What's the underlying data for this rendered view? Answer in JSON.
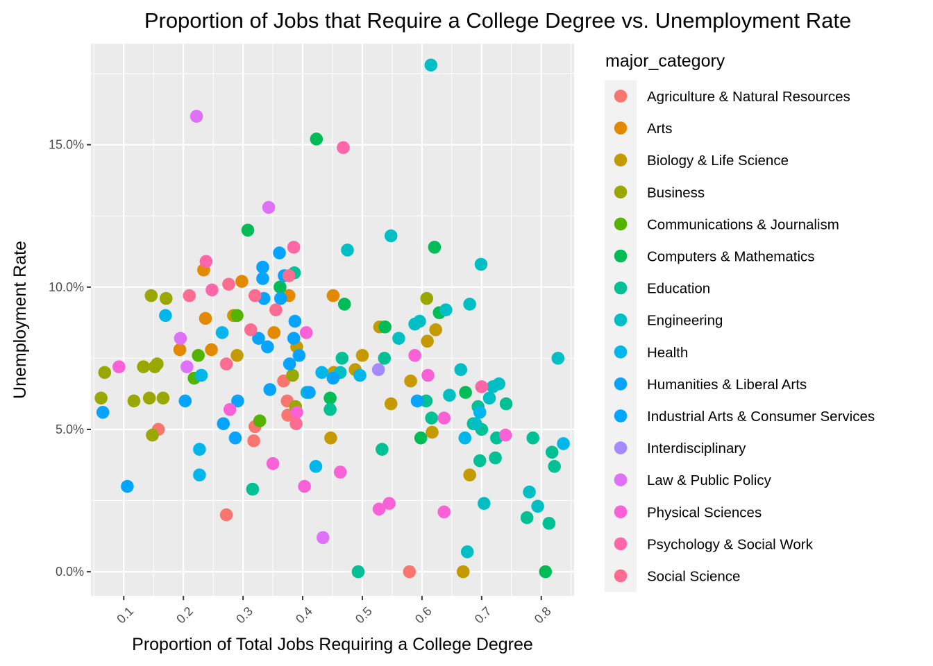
{
  "chart_data": {
    "type": "scatter",
    "title": "Proportion of Jobs that Require a College Degree vs. Unemployment Rate",
    "xlabel": "Proportion of Total Jobs Requiring a College Degree",
    "ylabel": "Unemployment Rate",
    "xlim": [
      0.045,
      0.855
    ],
    "ylim": [
      -0.0085,
      0.1855
    ],
    "x_ticks": [
      0.1,
      0.2,
      0.3,
      0.4,
      0.5,
      0.6,
      0.7,
      0.8
    ],
    "x_tick_labels": [
      "0.1",
      "0.2",
      "0.3",
      "0.4",
      "0.5",
      "0.6",
      "0.7",
      "0.8"
    ],
    "y_ticks": [
      0.0,
      0.05,
      0.1,
      0.15
    ],
    "y_tick_labels": [
      "0.0%",
      "5.0%",
      "10.0%",
      "15.0%"
    ],
    "grid": true,
    "panel_background": "#ebebeb",
    "legend": {
      "title": "major_category",
      "placement": "right",
      "background": "#f2f2f2"
    },
    "series": [
      {
        "name": "Agriculture & Natural Resources",
        "color": "#F8766D",
        "points": [
          [
            0.158,
            0.05
          ],
          [
            0.272,
            0.02
          ],
          [
            0.318,
            0.046
          ],
          [
            0.32,
            0.051
          ],
          [
            0.368,
            0.067
          ],
          [
            0.374,
            0.06
          ],
          [
            0.579,
            0.0
          ],
          [
            0.375,
            0.055
          ]
        ]
      },
      {
        "name": "Arts",
        "color": "#E38900",
        "points": [
          [
            0.194,
            0.078
          ],
          [
            0.234,
            0.106
          ],
          [
            0.237,
            0.089
          ],
          [
            0.247,
            0.078
          ],
          [
            0.284,
            0.09
          ],
          [
            0.298,
            0.102
          ],
          [
            0.352,
            0.084
          ],
          [
            0.377,
            0.097
          ],
          [
            0.451,
            0.097
          ]
        ]
      },
      {
        "name": "Biology & Life Science",
        "color": "#C49A00",
        "points": [
          [
            0.285,
            0.09
          ],
          [
            0.29,
            0.076
          ],
          [
            0.39,
            0.079
          ],
          [
            0.447,
            0.047
          ],
          [
            0.452,
            0.07
          ],
          [
            0.488,
            0.071
          ],
          [
            0.5,
            0.076
          ],
          [
            0.529,
            0.086
          ],
          [
            0.548,
            0.059
          ],
          [
            0.581,
            0.067
          ],
          [
            0.609,
            0.081
          ],
          [
            0.617,
            0.049
          ],
          [
            0.623,
            0.085
          ],
          [
            0.669,
            0.0
          ],
          [
            0.68,
            0.034
          ]
        ]
      },
      {
        "name": "Business",
        "color": "#99A800",
        "points": [
          [
            0.062,
            0.061
          ],
          [
            0.068,
            0.07
          ],
          [
            0.117,
            0.06
          ],
          [
            0.133,
            0.072
          ],
          [
            0.143,
            0.061
          ],
          [
            0.146,
            0.097
          ],
          [
            0.148,
            0.048
          ],
          [
            0.152,
            0.072
          ],
          [
            0.156,
            0.073
          ],
          [
            0.166,
            0.061
          ],
          [
            0.171,
            0.096
          ],
          [
            0.383,
            0.069
          ],
          [
            0.388,
            0.058
          ],
          [
            0.608,
            0.096
          ]
        ]
      },
      {
        "name": "Communications & Journalism",
        "color": "#53B400",
        "points": [
          [
            0.218,
            0.068
          ],
          [
            0.225,
            0.076
          ],
          [
            0.29,
            0.09
          ],
          [
            0.328,
            0.053
          ]
        ]
      },
      {
        "name": "Computers & Mathematics",
        "color": "#00BC56",
        "points": [
          [
            0.308,
            0.12
          ],
          [
            0.362,
            0.1
          ],
          [
            0.423,
            0.152
          ],
          [
            0.446,
            0.061
          ],
          [
            0.47,
            0.094
          ],
          [
            0.538,
            0.086
          ],
          [
            0.598,
            0.047
          ],
          [
            0.621,
            0.114
          ],
          [
            0.629,
            0.091
          ],
          [
            0.673,
            0.063
          ],
          [
            0.807,
            0.0
          ]
        ]
      },
      {
        "name": "Education",
        "color": "#00C094",
        "points": [
          [
            0.316,
            0.029
          ],
          [
            0.386,
            0.105
          ],
          [
            0.446,
            0.057
          ],
          [
            0.466,
            0.075
          ],
          [
            0.493,
            0.0
          ],
          [
            0.533,
            0.043
          ],
          [
            0.537,
            0.075
          ],
          [
            0.607,
            0.06
          ],
          [
            0.616,
            0.054
          ],
          [
            0.686,
            0.052
          ],
          [
            0.694,
            0.058
          ],
          [
            0.697,
            0.039
          ],
          [
            0.7,
            0.05
          ],
          [
            0.723,
            0.04
          ],
          [
            0.725,
            0.047
          ],
          [
            0.741,
            0.059
          ],
          [
            0.786,
            0.047
          ],
          [
            0.776,
            0.019
          ],
          [
            0.813,
            0.017
          ],
          [
            0.818,
            0.042
          ],
          [
            0.822,
            0.037
          ]
        ]
      },
      {
        "name": "Engineering",
        "color": "#00BFC4",
        "points": [
          [
            0.407,
            0.063
          ],
          [
            0.463,
            0.07
          ],
          [
            0.475,
            0.113
          ],
          [
            0.548,
            0.118
          ],
          [
            0.561,
            0.082
          ],
          [
            0.588,
            0.087
          ],
          [
            0.596,
            0.088
          ],
          [
            0.615,
            0.178
          ],
          [
            0.64,
            0.092
          ],
          [
            0.646,
            0.062
          ],
          [
            0.665,
            0.071
          ],
          [
            0.68,
            0.094
          ],
          [
            0.69,
            0.052
          ],
          [
            0.699,
            0.108
          ],
          [
            0.704,
            0.024
          ],
          [
            0.713,
            0.061
          ],
          [
            0.719,
            0.065
          ],
          [
            0.729,
            0.066
          ],
          [
            0.676,
            0.007
          ],
          [
            0.78,
            0.028
          ],
          [
            0.794,
            0.023
          ],
          [
            0.828,
            0.075
          ]
        ]
      },
      {
        "name": "Health",
        "color": "#00B6EB",
        "points": [
          [
            0.17,
            0.09
          ],
          [
            0.227,
            0.043
          ],
          [
            0.227,
            0.034
          ],
          [
            0.23,
            0.069
          ],
          [
            0.265,
            0.084
          ],
          [
            0.422,
            0.037
          ],
          [
            0.432,
            0.07
          ],
          [
            0.496,
            0.069
          ],
          [
            0.672,
            0.047
          ],
          [
            0.697,
            0.056
          ],
          [
            0.837,
            0.045
          ]
        ]
      },
      {
        "name": "Humanities & Liberal Arts",
        "color": "#06A4FF",
        "points": [
          [
            0.065,
            0.056
          ],
          [
            0.203,
            0.06
          ],
          [
            0.267,
            0.052
          ],
          [
            0.287,
            0.047
          ],
          [
            0.291,
            0.06
          ],
          [
            0.326,
            0.082
          ],
          [
            0.333,
            0.103
          ],
          [
            0.333,
            0.107
          ],
          [
            0.335,
            0.096
          ],
          [
            0.341,
            0.079
          ],
          [
            0.345,
            0.064
          ],
          [
            0.361,
            0.112
          ],
          [
            0.363,
            0.096
          ],
          [
            0.369,
            0.104
          ],
          [
            0.378,
            0.073
          ],
          [
            0.385,
            0.082
          ],
          [
            0.387,
            0.088
          ],
          [
            0.394,
            0.076
          ],
          [
            0.411,
            0.063
          ],
          [
            0.451,
            0.068
          ],
          [
            0.592,
            0.06
          ]
        ]
      },
      {
        "name": "Industrial Arts & Consumer Services",
        "color": "#00A5FF",
        "points": [
          [
            0.106,
            0.03
          ]
        ]
      },
      {
        "name": "Interdisciplinary",
        "color": "#A58AFF",
        "points": [
          [
            0.527,
            0.071
          ]
        ]
      },
      {
        "name": "Law & Public Policy",
        "color": "#DF70F8",
        "points": [
          [
            0.195,
            0.082
          ],
          [
            0.206,
            0.072
          ],
          [
            0.222,
            0.16
          ],
          [
            0.343,
            0.128
          ],
          [
            0.434,
            0.012
          ]
        ]
      },
      {
        "name": "Physical Sciences",
        "color": "#FB61D7",
        "points": [
          [
            0.092,
            0.072
          ],
          [
            0.278,
            0.057
          ],
          [
            0.35,
            0.038
          ],
          [
            0.39,
            0.056
          ],
          [
            0.403,
            0.03
          ],
          [
            0.406,
            0.084
          ],
          [
            0.463,
            0.035
          ],
          [
            0.528,
            0.022
          ],
          [
            0.545,
            0.024
          ],
          [
            0.588,
            0.076
          ],
          [
            0.61,
            0.069
          ],
          [
            0.637,
            0.021
          ],
          [
            0.74,
            0.048
          ],
          [
            0.637,
            0.054
          ]
        ]
      },
      {
        "name": "Psychology & Social Work",
        "color": "#FF66A8",
        "points": [
          [
            0.238,
            0.109
          ],
          [
            0.248,
            0.099
          ],
          [
            0.385,
            0.114
          ],
          [
            0.468,
            0.149
          ],
          [
            0.7,
            0.065
          ]
        ]
      },
      {
        "name": "Social Science",
        "color": "#FF6C91",
        "points": [
          [
            0.21,
            0.097
          ],
          [
            0.272,
            0.073
          ],
          [
            0.276,
            0.101
          ],
          [
            0.313,
            0.085
          ],
          [
            0.32,
            0.097
          ],
          [
            0.355,
            0.092
          ],
          [
            0.377,
            0.104
          ],
          [
            0.389,
            0.052
          ]
        ]
      }
    ]
  }
}
